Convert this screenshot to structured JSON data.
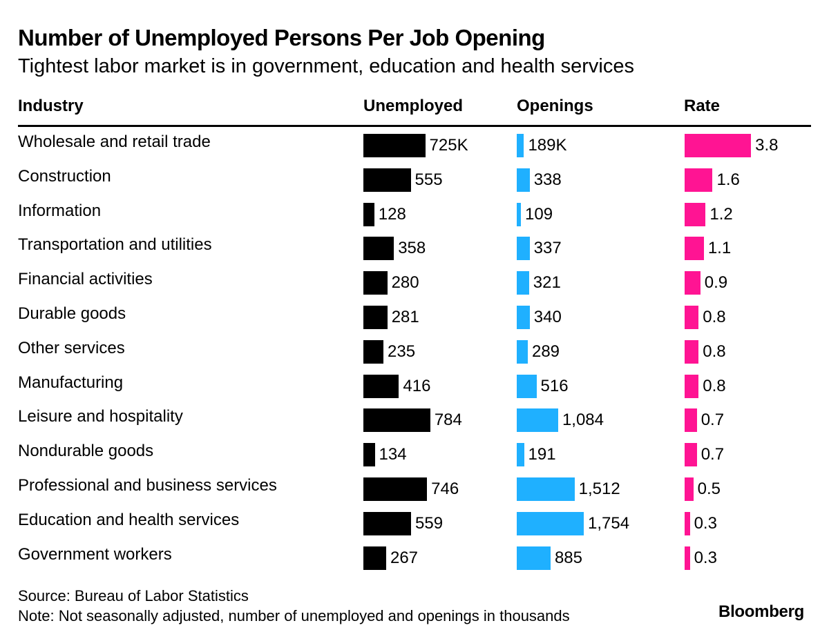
{
  "header": {
    "title": "Number of Unemployed Persons Per Job Opening",
    "subtitle": "Tightest labor market is in government, education and health services"
  },
  "columns": {
    "industry": "Industry",
    "unemployed": "Unemployed",
    "openings": "Openings",
    "rate": "Rate"
  },
  "colors": {
    "unemployed": "#000000",
    "openings": "#1fb0ff",
    "rate": "#ff1493"
  },
  "chart_data": {
    "type": "table",
    "title": "Number of Unemployed Persons Per Job Opening",
    "subtitle": "Tightest labor market is in government, education and health services",
    "columns": [
      "Industry",
      "Unemployed",
      "Openings",
      "Rate"
    ],
    "rows": [
      {
        "industry": "Wholesale and retail trade",
        "unemployed": 725,
        "unemployed_label": "725K",
        "openings": 189,
        "openings_label": "189K",
        "rate": 3.8,
        "rate_label": "3.8"
      },
      {
        "industry": "Construction",
        "unemployed": 555,
        "unemployed_label": "555",
        "openings": 338,
        "openings_label": "338",
        "rate": 1.6,
        "rate_label": "1.6"
      },
      {
        "industry": "Information",
        "unemployed": 128,
        "unemployed_label": "128",
        "openings": 109,
        "openings_label": "109",
        "rate": 1.2,
        "rate_label": "1.2"
      },
      {
        "industry": "Transportation and utilities",
        "unemployed": 358,
        "unemployed_label": "358",
        "openings": 337,
        "openings_label": "337",
        "rate": 1.1,
        "rate_label": "1.1"
      },
      {
        "industry": "Financial activities",
        "unemployed": 280,
        "unemployed_label": "280",
        "openings": 321,
        "openings_label": "321",
        "rate": 0.9,
        "rate_label": "0.9"
      },
      {
        "industry": "Durable goods",
        "unemployed": 281,
        "unemployed_label": "281",
        "openings": 340,
        "openings_label": "340",
        "rate": 0.8,
        "rate_label": "0.8"
      },
      {
        "industry": "Other services",
        "unemployed": 235,
        "unemployed_label": "235",
        "openings": 289,
        "openings_label": "289",
        "rate": 0.8,
        "rate_label": "0.8"
      },
      {
        "industry": "Manufacturing",
        "unemployed": 416,
        "unemployed_label": "416",
        "openings": 516,
        "openings_label": "516",
        "rate": 0.8,
        "rate_label": "0.8"
      },
      {
        "industry": "Leisure and hospitality",
        "unemployed": 784,
        "unemployed_label": "784",
        "openings": 1084,
        "openings_label": "1,084",
        "rate": 0.7,
        "rate_label": "0.7"
      },
      {
        "industry": "Nondurable goods",
        "unemployed": 134,
        "unemployed_label": "134",
        "openings": 191,
        "openings_label": "191",
        "rate": 0.7,
        "rate_label": "0.7"
      },
      {
        "industry": "Professional and business services",
        "unemployed": 746,
        "unemployed_label": "746",
        "openings": 1512,
        "openings_label": "1,512",
        "rate": 0.5,
        "rate_label": "0.5"
      },
      {
        "industry": "Education and health services",
        "unemployed": 559,
        "unemployed_label": "559",
        "openings": 1754,
        "openings_label": "1,754",
        "rate": 0.3,
        "rate_label": "0.3"
      },
      {
        "industry": "Government workers",
        "unemployed": 267,
        "unemployed_label": "267",
        "openings": 885,
        "openings_label": "885",
        "rate": 0.3,
        "rate_label": "0.3"
      }
    ]
  },
  "footer": {
    "source": "Source: Bureau of Labor Statistics",
    "note": "Note: Not seasonally adjusted, number of unemployed and openings in thousands",
    "brand": "Bloomberg"
  }
}
